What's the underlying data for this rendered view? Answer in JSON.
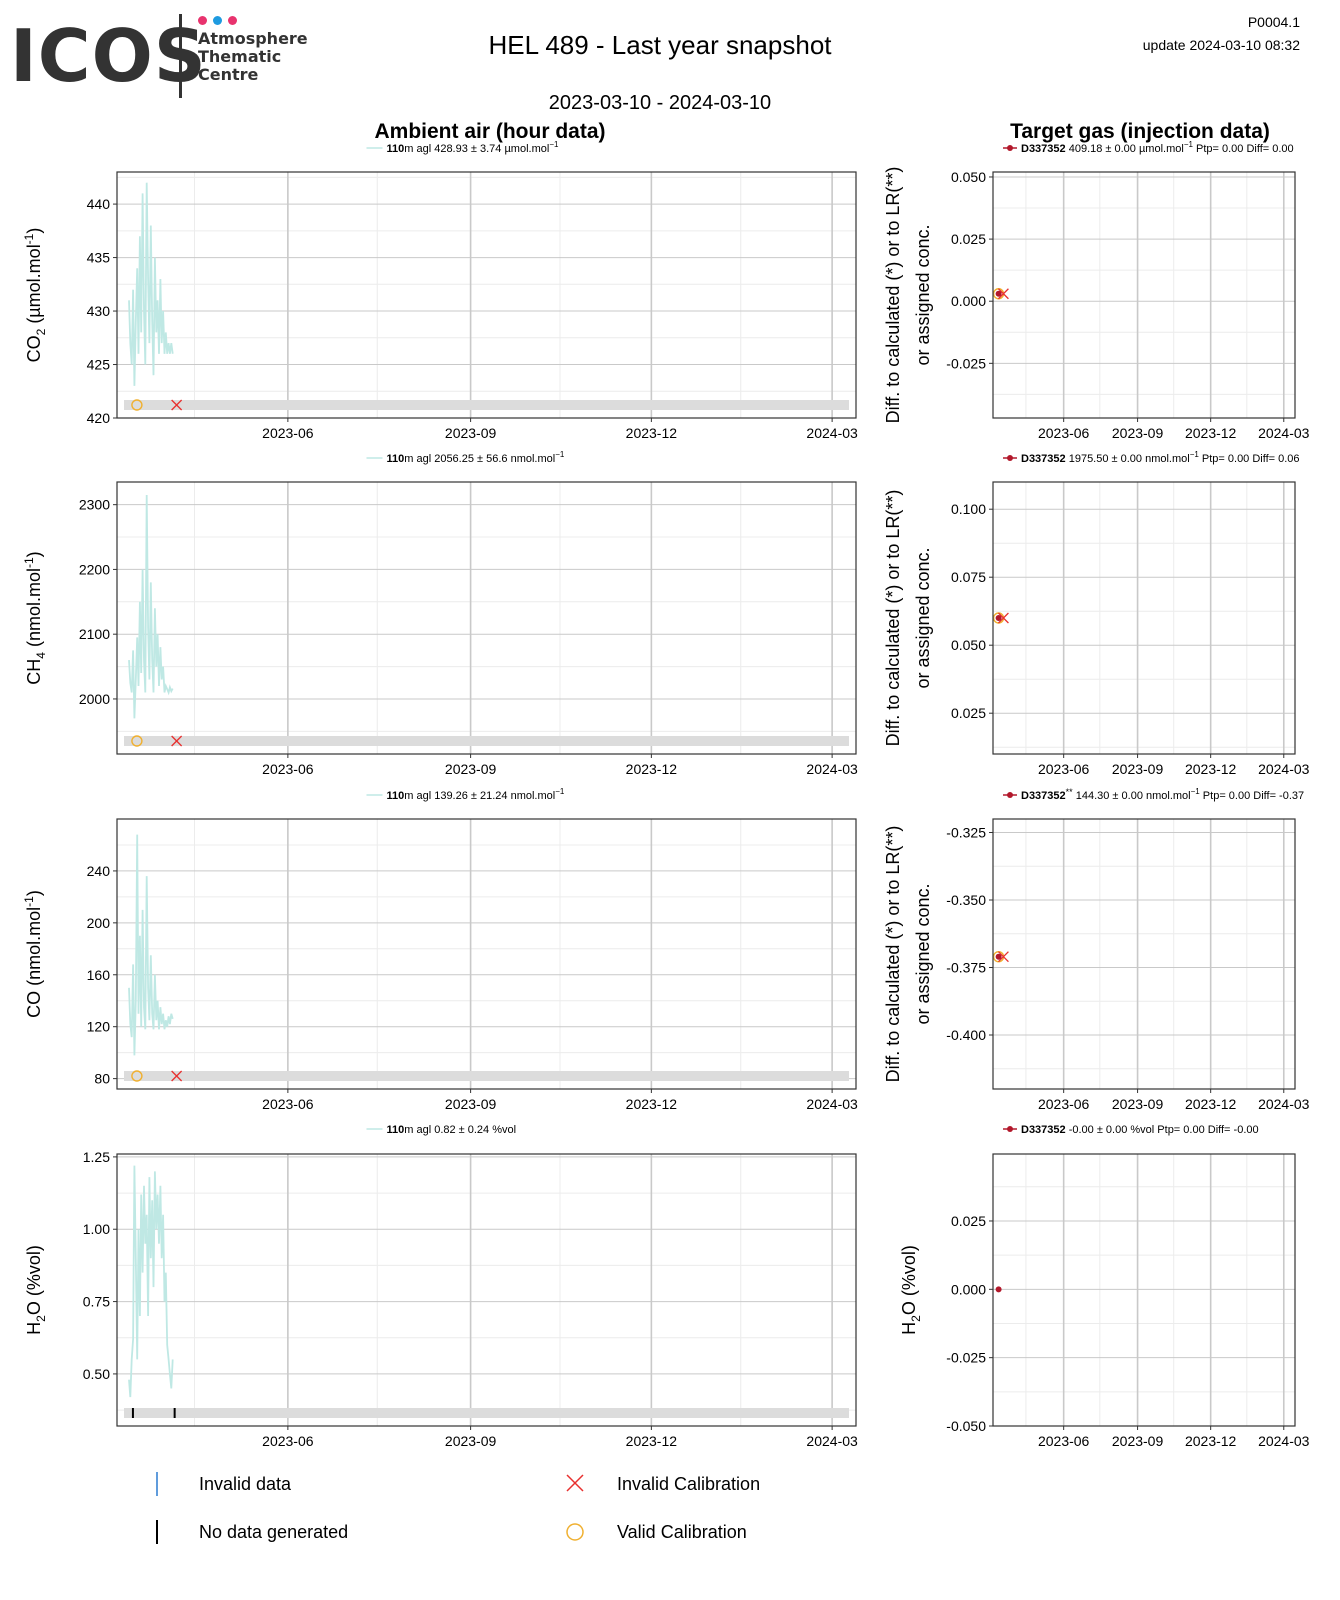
{
  "header": {
    "logo_text": "ICOS",
    "logo_sub_lines": [
      "Atmosphere",
      "Thematic",
      "Centre"
    ],
    "logo_dot_colors": [
      "#e8336e",
      "#1e9be0",
      "#e8336e"
    ],
    "title": "HEL 489 - Last year snapshot",
    "date_range": "2023-03-10 - 2024-03-10",
    "code": "P0004.1",
    "update": "update  2024-03-10 08:32",
    "left_section_title": "Ambient air (hour data)",
    "right_section_title": "Target gas (injection data)"
  },
  "colors": {
    "ambient_line": "#bfe8e4",
    "target_point": "#b2182b",
    "valid_calibration": "#f0b030",
    "invalid_calibration": "#e8302f",
    "invalid_data": "#2b7bd0",
    "no_data": "#000000",
    "status_band": "#dcdcdc",
    "major_grid": "#c9c9c9",
    "minor_grid": "#ececec"
  },
  "x_ticks": [
    "2023-06",
    "2023-09",
    "2023-12",
    "2024-03"
  ],
  "chart_data": [
    {
      "type": "line",
      "panel": "ambient-co2",
      "xlim": [
        "2023-03-10",
        "2024-03-10"
      ],
      "ylim": [
        420,
        443
      ],
      "yticks": [
        420,
        425,
        430,
        435,
        440
      ],
      "ylabel_main": "CO",
      "ylabel_sub": "2",
      "ylabel_unit": " (µmol.mol",
      "ylabel_sup": "-1",
      "ylabel_end": ")",
      "legend": {
        "height": "110",
        "rest": "m agl 428.93 ± 3.74 µmol.mol",
        "sup": "−1"
      },
      "series": [
        {
          "x_start": "2023-03-13",
          "x_end": "2023-04-04",
          "y": [
            431,
            427,
            425,
            432,
            423,
            429,
            434,
            426,
            437,
            428,
            441,
            430,
            425,
            442,
            433,
            427,
            438,
            429,
            424,
            435,
            428,
            431,
            426,
            433,
            427,
            430,
            426,
            428,
            426,
            427,
            426,
            427,
            426
          ]
        }
      ],
      "status_band": [
        {
          "x": "2023-03-17",
          "kind": "valid_calibration"
        },
        {
          "x": "2023-04-06",
          "kind": "invalid_calibration"
        }
      ]
    },
    {
      "type": "line",
      "panel": "ambient-ch4",
      "xlim": [
        "2023-03-10",
        "2024-03-10"
      ],
      "ylim": [
        1915,
        2335
      ],
      "yticks": [
        2000,
        2100,
        2200,
        2300
      ],
      "ylabel_main": "CH",
      "ylabel_sub": "4",
      "ylabel_unit": " (nmol.mol",
      "ylabel_sup": "-1",
      "ylabel_end": ")",
      "legend": {
        "height": "110",
        "rest": "m agl 2056.25 ± 56.6 nmol.mol",
        "sup": "−1"
      },
      "series": [
        {
          "x_start": "2023-03-13",
          "x_end": "2023-04-04",
          "y": [
            2060,
            2025,
            2010,
            2075,
            1970,
            2030,
            2095,
            2020,
            2150,
            2040,
            2200,
            2060,
            2010,
            2315,
            2110,
            2030,
            2180,
            2060,
            2010,
            2140,
            2050,
            2100,
            2020,
            2080,
            2030,
            2050,
            2010,
            2020,
            2015,
            2010,
            2018,
            2012,
            2016
          ]
        }
      ],
      "status_band": [
        {
          "x": "2023-03-17",
          "kind": "valid_calibration"
        },
        {
          "x": "2023-04-06",
          "kind": "invalid_calibration"
        }
      ]
    },
    {
      "type": "line",
      "panel": "ambient-co",
      "xlim": [
        "2023-03-10",
        "2024-03-10"
      ],
      "ylim": [
        72,
        280
      ],
      "yticks": [
        80,
        120,
        160,
        200,
        240
      ],
      "ylabel_main": "CO",
      "ylabel_sub": "",
      "ylabel_unit": " (nmol.mol",
      "ylabel_sup": "-1",
      "ylabel_end": ")",
      "legend": {
        "height": "110",
        "rest": "m agl 139.26 ± 21.24 nmol.mol",
        "sup": "−1"
      },
      "series": [
        {
          "x_start": "2023-03-13",
          "x_end": "2023-04-04",
          "y": [
            150,
            122,
            112,
            168,
            98,
            140,
            268,
            130,
            190,
            120,
            210,
            135,
            118,
            236,
            150,
            125,
            175,
            130,
            118,
            160,
            125,
            140,
            118,
            135,
            122,
            130,
            118,
            125,
            120,
            128,
            122,
            130,
            126
          ]
        }
      ],
      "status_band": [
        {
          "x": "2023-03-17",
          "kind": "valid_calibration"
        },
        {
          "x": "2023-04-06",
          "kind": "invalid_calibration"
        }
      ]
    },
    {
      "type": "line",
      "panel": "ambient-h2o",
      "xlim": [
        "2023-03-10",
        "2024-03-10"
      ],
      "ylim": [
        0.32,
        1.26
      ],
      "yticks": [
        0.5,
        0.75,
        1.0,
        1.25
      ],
      "ytick_labels": [
        "0.50",
        "0.75",
        "1.00",
        "1.25"
      ],
      "ylabel_main": "H",
      "ylabel_sub": "2",
      "ylabel_unit": "O (%vol)",
      "ylabel_sup": "",
      "ylabel_end": "",
      "legend": {
        "height": "110",
        "rest": "m agl 0.82 ± 0.24 %vol",
        "sup": ""
      },
      "series": [
        {
          "x_start": "2023-03-13",
          "x_end": "2023-04-04",
          "y": [
            0.48,
            0.42,
            0.55,
            0.62,
            1.22,
            0.9,
            0.55,
            1.0,
            0.7,
            1.12,
            0.85,
            1.15,
            0.95,
            1.05,
            0.7,
            1.18,
            0.9,
            1.1,
            0.8,
            1.2,
            1.0,
            1.12,
            0.95,
            1.15,
            0.9,
            1.05,
            0.75,
            0.85,
            0.6,
            0.55,
            0.5,
            0.45,
            0.55
          ]
        }
      ],
      "status_band": [
        {
          "x": "2023-03-15",
          "kind": "no_data"
        },
        {
          "x": "2023-04-05",
          "kind": "no_data"
        }
      ]
    },
    {
      "type": "scatter",
      "panel": "target-co2",
      "xlim": [
        "2023-03-10",
        "2024-03-10"
      ],
      "ylim": [
        -0.047,
        0.052
      ],
      "yticks": [
        -0.025,
        0.0,
        0.025,
        0.05
      ],
      "ytick_labels": [
        "-0.025",
        "0.000",
        "0.025",
        "0.050"
      ],
      "ylabel_lines": [
        "Diff. to calculated (*) or to LR(**)",
        "or assigned conc."
      ],
      "legend": {
        "id": "D337352",
        "mark": "",
        "rest": " 409.18 ± 0.00 µmol.mol",
        "sup": "−1",
        "tail": " Ptp= 0.00 Diff= 0.00"
      },
      "points": [
        {
          "x": "2023-03-12",
          "y": 0.003
        }
      ],
      "calibrations": [
        {
          "x": "2023-03-12",
          "y": 0.003,
          "kind": "valid_calibration"
        },
        {
          "x": "2023-03-18",
          "y": 0.003,
          "kind": "invalid_calibration"
        }
      ]
    },
    {
      "type": "scatter",
      "panel": "target-ch4",
      "xlim": [
        "2023-03-10",
        "2024-03-10"
      ],
      "ylim": [
        0.01,
        0.11
      ],
      "yticks": [
        0.025,
        0.05,
        0.075,
        0.1
      ],
      "ytick_labels": [
        "0.025",
        "0.050",
        "0.075",
        "0.100"
      ],
      "ylabel_lines": [
        "Diff. to calculated (*) or to LR(**)",
        "or assigned conc."
      ],
      "legend": {
        "id": "D337352",
        "mark": "",
        "rest": " 1975.50 ± 0.00 nmol.mol",
        "sup": "−1",
        "tail": " Ptp= 0.00 Diff= 0.06"
      },
      "points": [
        {
          "x": "2023-03-12",
          "y": 0.06
        }
      ],
      "calibrations": [
        {
          "x": "2023-03-12",
          "y": 0.06,
          "kind": "valid_calibration"
        },
        {
          "x": "2023-03-18",
          "y": 0.06,
          "kind": "invalid_calibration"
        }
      ]
    },
    {
      "type": "scatter",
      "panel": "target-co",
      "xlim": [
        "2023-03-10",
        "2024-03-10"
      ],
      "ylim": [
        -0.42,
        -0.32
      ],
      "yticks": [
        -0.4,
        -0.375,
        -0.35,
        -0.325
      ],
      "ytick_labels": [
        "-0.400",
        "-0.375",
        "-0.350",
        "-0.325"
      ],
      "ylabel_lines": [
        "Diff. to calculated (*) or to LR(**)",
        "or assigned conc."
      ],
      "legend": {
        "id": "D337352",
        "mark": "**",
        "rest": " 144.30 ± 0.00 nmol.mol",
        "sup": "−1",
        "tail": " Ptp= 0.00 Diff= -0.37"
      },
      "points": [
        {
          "x": "2023-03-12",
          "y": -0.371
        }
      ],
      "calibrations": [
        {
          "x": "2023-03-12",
          "y": -0.371,
          "kind": "valid_calibration"
        },
        {
          "x": "2023-03-18",
          "y": -0.371,
          "kind": "invalid_calibration"
        }
      ]
    },
    {
      "type": "scatter",
      "panel": "target-h2o",
      "xlim": [
        "2023-03-10",
        "2024-03-10"
      ],
      "ylim": [
        -0.05,
        0.0495
      ],
      "yticks": [
        -0.05,
        -0.025,
        0.0,
        0.025
      ],
      "ytick_labels": [
        "-0.050",
        "-0.025",
        "0.000",
        "0.025"
      ],
      "ylabel_h2o": true,
      "legend": {
        "id": "D337352",
        "mark": "",
        "rest": " -0.00 ± 0.00 %vol Ptp= 0.00 Diff= -0.00",
        "sup": "",
        "tail": ""
      },
      "points": [
        {
          "x": "2023-03-12",
          "y": 0.0
        }
      ],
      "calibrations": []
    }
  ],
  "bottom_legend": [
    {
      "kind": "invalid_data",
      "label": "Invalid data"
    },
    {
      "kind": "invalid_calibration",
      "label": "Invalid Calibration"
    },
    {
      "kind": "no_data",
      "label": "No data generated"
    },
    {
      "kind": "valid_calibration",
      "label": "Valid Calibration"
    }
  ]
}
